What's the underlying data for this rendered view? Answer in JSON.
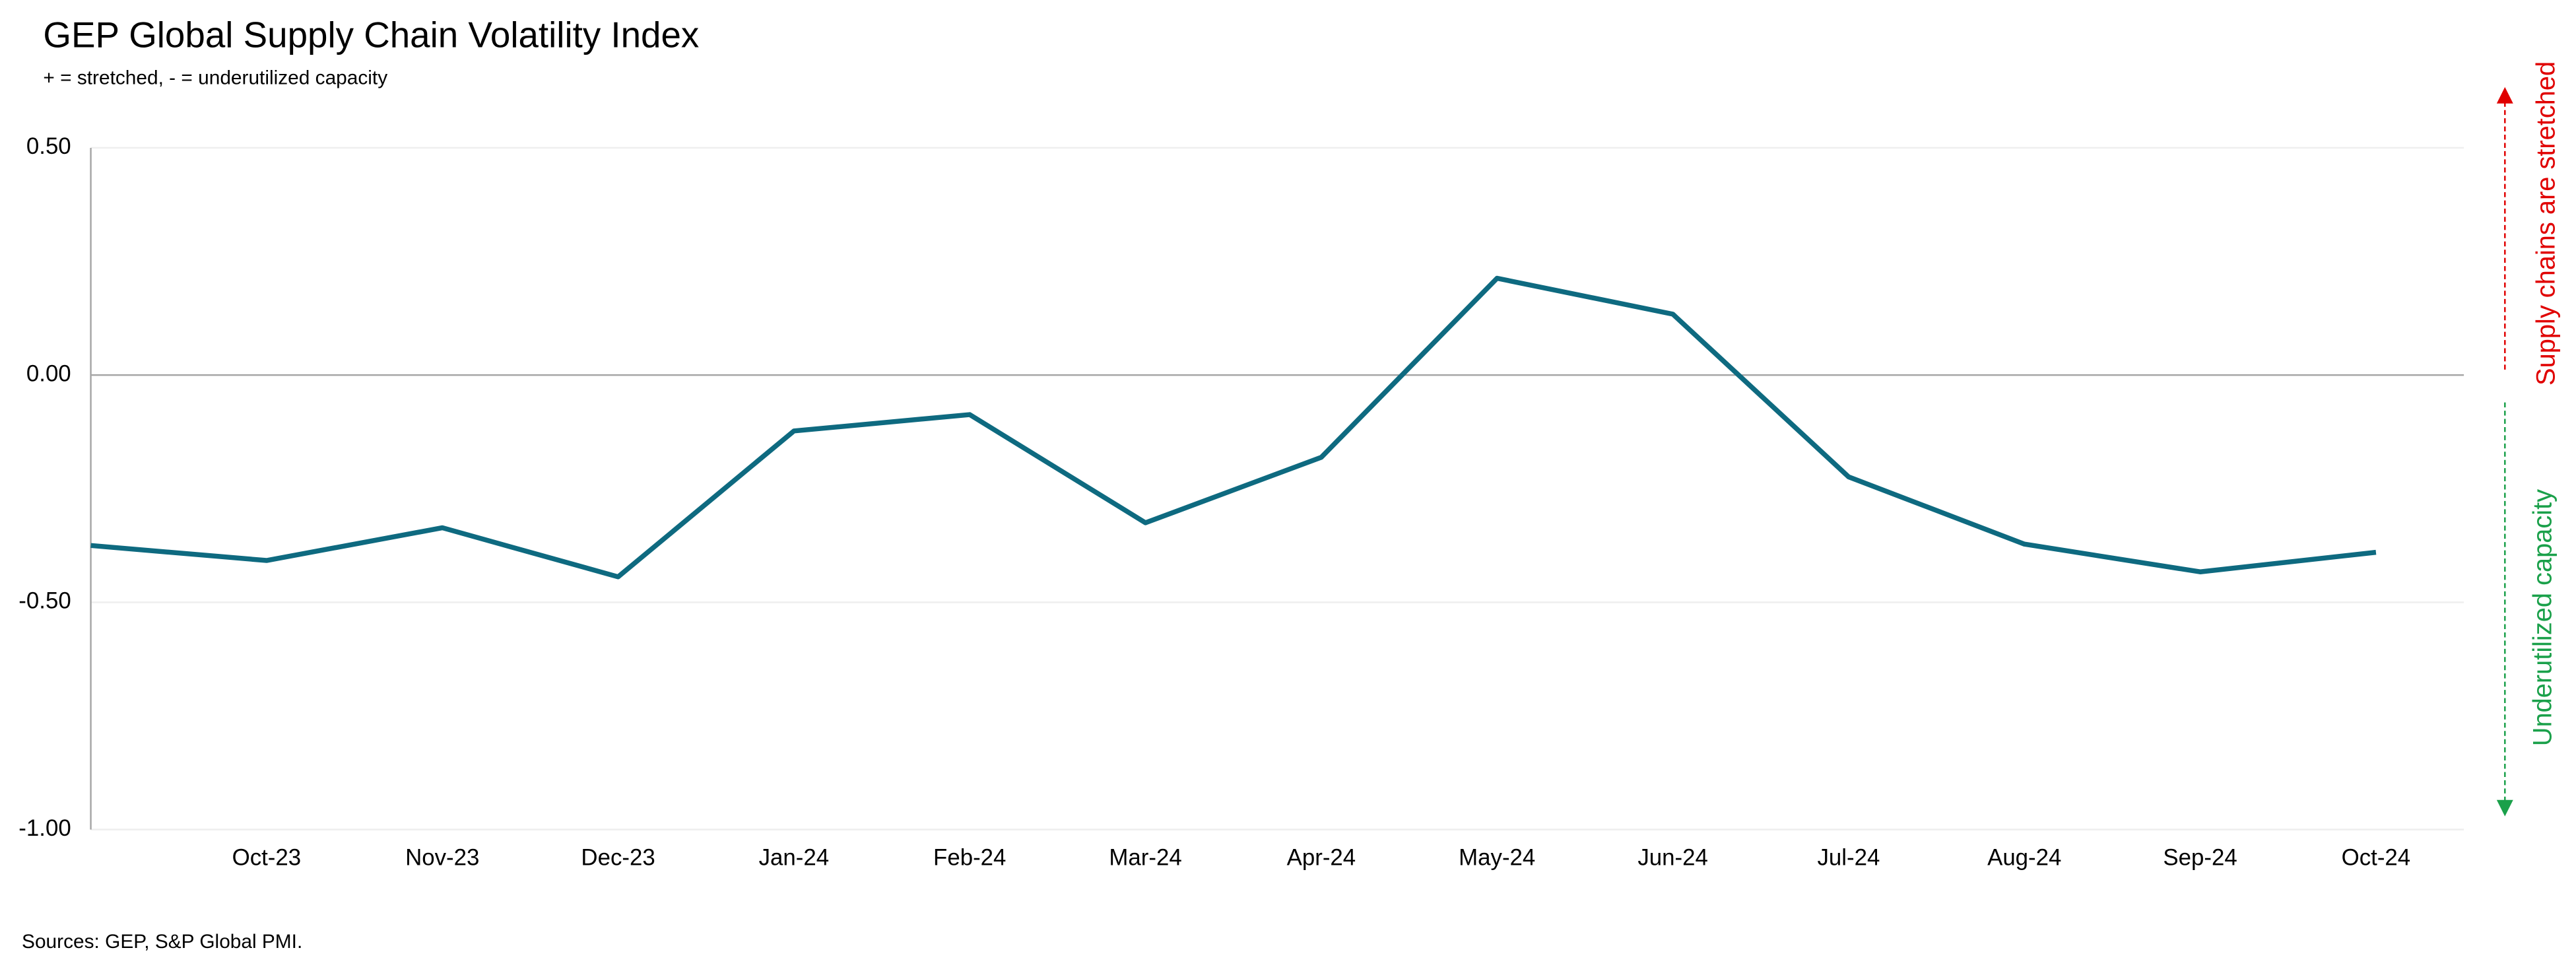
{
  "chart_data": {
    "type": "line",
    "title": "GEP Global Supply Chain Volatility Index",
    "subtitle": "+ = stretched, - = underutilized capacity",
    "source": "Sources: GEP, S&P Global PMI.",
    "annotations": [
      "Supply chains are stretched",
      "Underutilized capacity"
    ],
    "categories": [
      null,
      "Oct-23",
      "Nov-23",
      "Dec-23",
      "Jan-24",
      "Feb-24",
      "Mar-24",
      "Apr-24",
      "May-24",
      "Jun-24",
      "Jul-24",
      "Aug-24",
      "Sep-24",
      "Oct-24"
    ],
    "series": [
      {
        "name": "GEP Global Supply Chain Volatility Index",
        "color": "#0e6a80",
        "values": [
          -0.375,
          -0.408,
          -0.336,
          -0.444,
          -0.123,
          -0.087,
          -0.325,
          -0.181,
          0.213,
          0.134,
          -0.224,
          -0.372,
          -0.433,
          -0.39
        ]
      }
    ],
    "ylim": [
      -1.0,
      0.5
    ],
    "yticks": [
      {
        "value": -1.0,
        "label": "-1.00"
      },
      {
        "value": -0.5,
        "label": "-0.50"
      },
      {
        "value": 0,
        "label": "0.00"
      },
      {
        "value": 0.5,
        "label": "0.50"
      }
    ],
    "grid": true
  }
}
